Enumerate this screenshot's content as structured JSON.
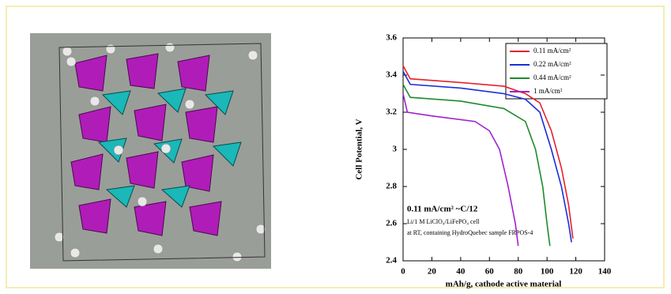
{
  "chart_data": {
    "type": "line",
    "xlabel": "mAh/g, cathode active material",
    "ylabel": "Cell Potential, V",
    "xlim": [
      0,
      140
    ],
    "xticks": [
      0,
      20,
      40,
      60,
      80,
      100,
      120,
      140
    ],
    "ylim": [
      2.4,
      3.6
    ],
    "yticks": [
      2.4,
      2.6,
      2.8,
      3,
      3.2,
      3.4,
      3.6
    ],
    "annotations": [
      "0.11 mA/cm² ~C/12",
      "Li/1 M LiClO₄/LiFePO₄ cell",
      "at RT, containing HydroQuebec sample FRPOS-4"
    ],
    "series": [
      {
        "name": "0.11 mA/cm²",
        "color": "#e8202a",
        "x": [
          0,
          5,
          40,
          70,
          85,
          95,
          103,
          110,
          115,
          118
        ],
        "values": [
          3.45,
          3.38,
          3.36,
          3.34,
          3.3,
          3.25,
          3.1,
          2.9,
          2.7,
          2.52
        ]
      },
      {
        "name": "0.22 mA/cm²",
        "color": "#1a2fd6",
        "x": [
          0,
          5,
          40,
          70,
          85,
          95,
          103,
          110,
          115,
          117
        ],
        "values": [
          3.42,
          3.35,
          3.33,
          3.3,
          3.27,
          3.2,
          3.0,
          2.8,
          2.6,
          2.5
        ]
      },
      {
        "name": "0.44 mA/cm²",
        "color": "#1e8a2e",
        "x": [
          0,
          5,
          40,
          70,
          85,
          92,
          97,
          100,
          102
        ],
        "values": [
          3.35,
          3.28,
          3.26,
          3.22,
          3.15,
          3.0,
          2.8,
          2.6,
          2.48
        ]
      },
      {
        "name": "1 mA/cm²",
        "color": "#a020d0",
        "x": [
          0,
          3,
          20,
          50,
          60,
          67,
          73,
          78,
          80
        ],
        "values": [
          3.3,
          3.2,
          3.18,
          3.15,
          3.1,
          3.0,
          2.8,
          2.6,
          2.48
        ]
      }
    ]
  }
}
